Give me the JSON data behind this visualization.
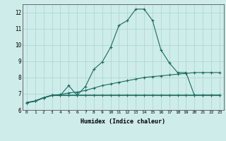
{
  "xlabel": "Humidex (Indice chaleur)",
  "bg_color": "#ceecea",
  "grid_color": "#add8d4",
  "line_color": "#1a6b5e",
  "xlim": [
    -0.5,
    23.5
  ],
  "ylim": [
    6.0,
    12.5
  ],
  "yticks": [
    6,
    7,
    8,
    9,
    10,
    11,
    12
  ],
  "xticks": [
    0,
    1,
    2,
    3,
    4,
    5,
    6,
    7,
    8,
    9,
    10,
    11,
    12,
    13,
    14,
    15,
    16,
    17,
    18,
    19,
    20,
    21,
    22,
    23
  ],
  "line1_x": [
    0,
    1,
    2,
    3,
    4,
    5,
    6,
    7,
    8,
    9,
    10,
    11,
    12,
    13,
    14,
    15,
    16,
    17,
    18,
    19,
    20,
    21,
    22,
    23
  ],
  "line1_y": [
    6.45,
    6.55,
    6.75,
    6.9,
    6.9,
    7.5,
    6.9,
    7.45,
    8.5,
    8.95,
    9.85,
    11.2,
    11.5,
    12.2,
    12.2,
    11.5,
    9.7,
    8.9,
    8.3,
    8.3,
    6.9,
    6.9,
    6.9,
    6.9
  ],
  "line2_x": [
    0,
    1,
    2,
    3,
    4,
    5,
    6,
    7,
    8,
    9,
    10,
    11,
    12,
    13,
    14,
    15,
    16,
    17,
    18,
    19,
    20,
    21,
    22,
    23
  ],
  "line2_y": [
    6.45,
    6.55,
    6.75,
    6.9,
    6.95,
    7.05,
    7.1,
    7.2,
    7.35,
    7.5,
    7.6,
    7.7,
    7.8,
    7.9,
    8.0,
    8.05,
    8.1,
    8.15,
    8.2,
    8.25,
    8.3,
    8.3,
    8.3,
    8.3
  ],
  "line3_x": [
    0,
    1,
    2,
    3,
    4,
    5,
    6,
    7,
    8,
    9,
    10,
    11,
    12,
    13,
    14,
    15,
    16,
    17,
    18,
    19,
    20,
    21,
    22,
    23
  ],
  "line3_y": [
    6.45,
    6.55,
    6.75,
    6.9,
    6.9,
    6.9,
    6.9,
    6.9,
    6.9,
    6.9,
    6.9,
    6.9,
    6.9,
    6.9,
    6.9,
    6.9,
    6.9,
    6.9,
    6.9,
    6.9,
    6.9,
    6.9,
    6.9,
    6.9
  ]
}
